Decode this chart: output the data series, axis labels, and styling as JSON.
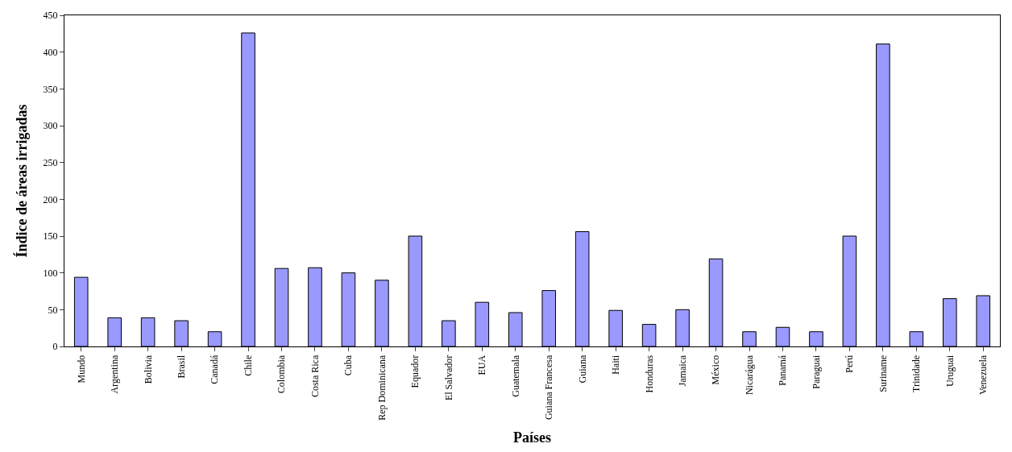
{
  "chart_data": {
    "type": "bar",
    "xlabel": "Países",
    "ylabel": "Índice de áreas irrigadas",
    "categories": [
      "Mundo",
      "Argentina",
      "Bolivia",
      "Brasil",
      "Canadá",
      "Chile",
      "Colombia",
      "Costa Rica",
      "Cuba",
      "Rep Dominicana",
      "Equador",
      "El Salvador",
      "EUA",
      "Guatemala",
      "Guiana Francesa",
      "Guiana",
      "Haiti",
      "Honduras",
      "Jamaica",
      "México",
      "Nicarágua",
      "Panamá",
      "Paraguai",
      "Perú",
      "Suriname",
      "Trinidade",
      "Uruguai",
      "Venezuela"
    ],
    "values": [
      94,
      39,
      39,
      35,
      20,
      426,
      106,
      107,
      100,
      90,
      150,
      35,
      60,
      46,
      76,
      156,
      49,
      30,
      50,
      119,
      20,
      26,
      20,
      150,
      411,
      20,
      65,
      69
    ],
    "color": "#9999ff",
    "ylim": [
      0,
      450
    ],
    "yticks": [
      0,
      50,
      100,
      150,
      200,
      250,
      300,
      350,
      400,
      450
    ]
  }
}
